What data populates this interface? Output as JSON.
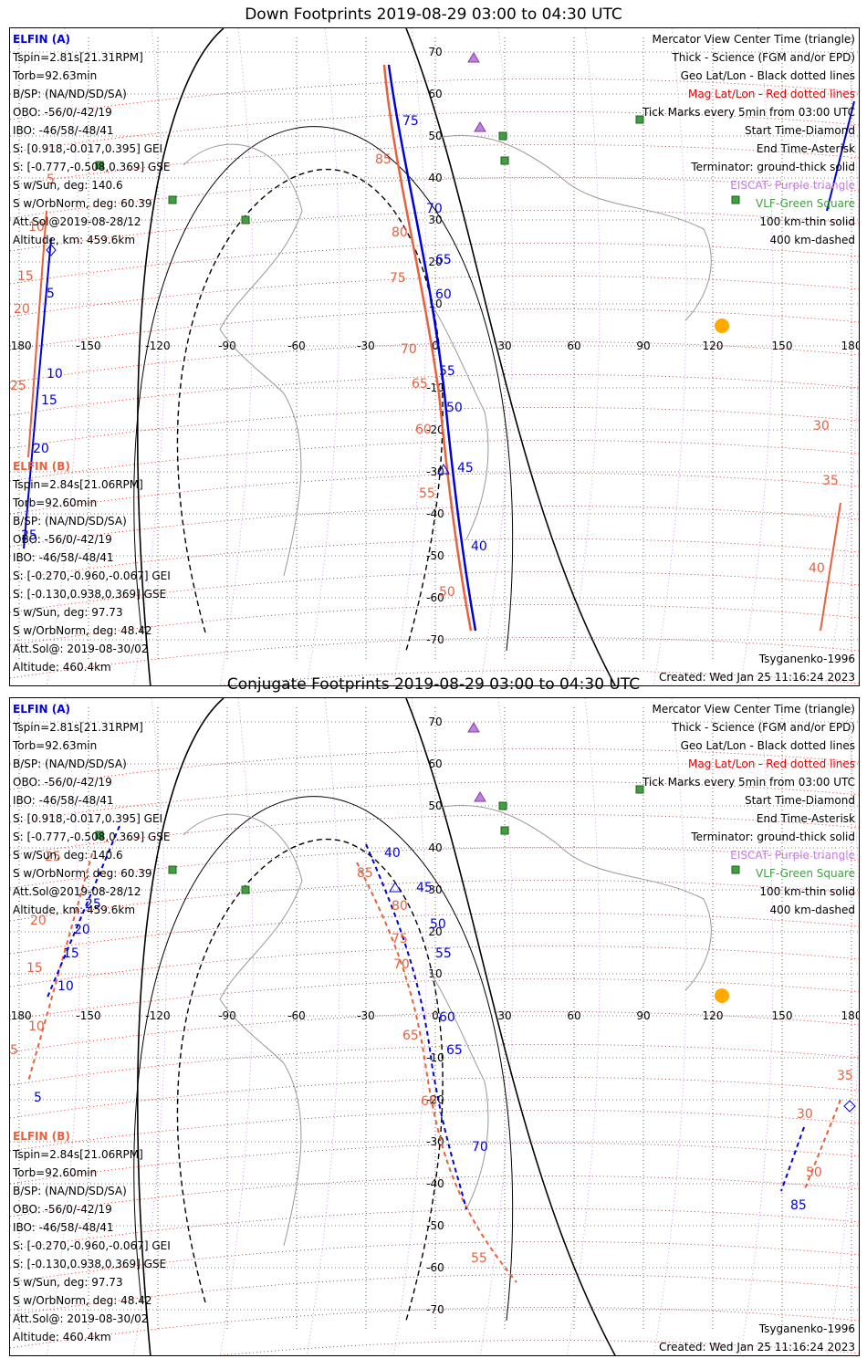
{
  "panels": [
    {
      "title": "Down Footprints 2019-08-29 03:00 to 04:30 UTC",
      "a_label": "ELFIN (A)",
      "a_lines": [
        "Tspin=2.81s[21.31RPM]",
        "Torb=92.63min",
        "B/SP: (NA/ND/SD/SA)",
        "OBO: -56/0/-42/19",
        "IBO: -46/58/-48/41",
        "S: [0.918,-0.017,0.395] GEI",
        "S: [-0.777,-0.508,0.369] GSE",
        "S w/Sun, deg: 140.6",
        "S w/OrbNorm, deg: 60.39",
        "Att.Sol@2019-08-28/12",
        "Altitude, km: 459.6km"
      ],
      "b_label": "ELFIN (B)",
      "b_lines": [
        "Tspin=2.84s[21.06RPM]",
        "Torb=92.60min",
        "B/SP: (NA/ND/SD/SA)",
        "OBO: -56/0/-42/19",
        "IBO: -46/58/-48/41",
        "S: [-0.270,-0.960,-0.067] GEI",
        "S: [-0.130,0.938,0.369] GSE",
        "S w/Sun, deg: 97.73",
        "S w/OrbNorm, deg: 48.42",
        "Att.Sol@: 2019-08-30/02",
        "Altitude: 460.4km"
      ],
      "legend": [
        "Mercator View Center Time (triangle)",
        "Thick - Science (FGM and/or EPD)",
        "Geo Lat/Lon - Black dotted lines",
        "Mag Lat/Lon - Red dotted lines",
        "Tick Marks every 5min from 03:00 UTC",
        "Start Time-Diamond",
        "End Time-Asterisk",
        "Terminator: ground-thick solid",
        "EISCAT- Purple triangle",
        "VLF-Green Square",
        "100 km-thin solid",
        "400 km-dashed"
      ],
      "model": "Tsyganenko-1996",
      "created": "Created: Wed Jan 25 11:16:24 2023",
      "lon_ticks": [
        "-180",
        "-150",
        "-120",
        "-90",
        "-60",
        "-30",
        "0",
        "30",
        "60",
        "90",
        "120",
        "150",
        "180"
      ],
      "lat_ticks": [
        "70",
        "60",
        "50",
        "40",
        "30",
        "20",
        "10",
        "-10",
        "-20",
        "-30",
        "-40",
        "-50",
        "-60",
        "-70"
      ],
      "a_marks": [
        "5",
        "10",
        "15",
        "20",
        "25",
        "40",
        "45",
        "50",
        "55",
        "60",
        "65",
        "70",
        "75"
      ],
      "b_marks": [
        "5",
        "10",
        "15",
        "20",
        "25",
        "30",
        "35",
        "40",
        "50",
        "55",
        "60",
        "65",
        "70",
        "75",
        "80",
        "85"
      ],
      "terminator_lon": -60
    },
    {
      "title": "Conjugate Footprints 2019-08-29 03:00 to 04:30 UTC",
      "a_label": "ELFIN (A)",
      "a_lines": [
        "Tspin=2.81s[21.31RPM]",
        "Torb=92.63min",
        "B/SP: (NA/ND/SD/SA)",
        "OBO: -56/0/-42/19",
        "IBO: -46/58/-48/41",
        "S: [0.918,-0.017,0.395] GEI",
        "S: [-0.777,-0.508,0.369] GSE",
        "S w/Sun, deg: 140.6",
        "S w/OrbNorm, deg: 60.39",
        "Att.Sol@2019-08-28/12",
        "Altitude, km: 459.6km"
      ],
      "b_label": "ELFIN (B)",
      "b_lines": [
        "Tspin=2.84s[21.06RPM]",
        "Torb=92.60min",
        "B/SP: (NA/ND/SD/SA)",
        "OBO: -56/0/-42/19",
        "IBO: -46/58/-48/41",
        "S: [-0.270,-0.960,-0.067] GEI",
        "S: [-0.130,0.938,0.369] GSE",
        "S w/Sun, deg: 97.73",
        "S w/OrbNorm, deg: 48.42",
        "Att.Sol@: 2019-08-30/02",
        "Altitude: 460.4km"
      ],
      "legend": [
        "Mercator View Center Time (triangle)",
        "Thick - Science (FGM and/or EPD)",
        "Geo Lat/Lon - Black dotted lines",
        "Mag Lat/Lon - Red dotted lines",
        "Tick Marks every 5min from 03:00 UTC",
        "Start Time-Diamond",
        "End Time-Asterisk",
        "Terminator: ground-thick solid",
        "EISCAT- Purple triangle",
        "VLF-Green Square",
        "100 km-thin solid",
        "400 km-dashed"
      ],
      "model": "Tsyganenko-1996",
      "created": "Created: Wed Jan 25 11:16:24 2023",
      "lon_ticks": [
        "-180",
        "-150",
        "-120",
        "-90",
        "-60",
        "-30",
        "0",
        "30",
        "60",
        "90",
        "120",
        "150",
        "180"
      ],
      "lat_ticks": [
        "70",
        "60",
        "50",
        "40",
        "30",
        "20",
        "10",
        "-10",
        "-20",
        "-30",
        "-40",
        "-50",
        "-60",
        "-70"
      ],
      "a_marks": [
        "5",
        "10",
        "15",
        "20",
        "25",
        "40",
        "45",
        "50",
        "55",
        "60",
        "65",
        "70",
        "85"
      ],
      "b_marks": [
        "5",
        "10",
        "15",
        "20",
        "25",
        "30",
        "35",
        "50",
        "55",
        "60",
        "65",
        "70",
        "75",
        "80",
        "85"
      ],
      "terminator_lon": -60
    }
  ],
  "colors": {
    "elfin_a": "#0000dd",
    "elfin_b": "#e8603c",
    "mag_grid": "#e00000",
    "eiscat": "#c080e0",
    "vlf": "#40a040",
    "sun": "#ffaa00"
  }
}
